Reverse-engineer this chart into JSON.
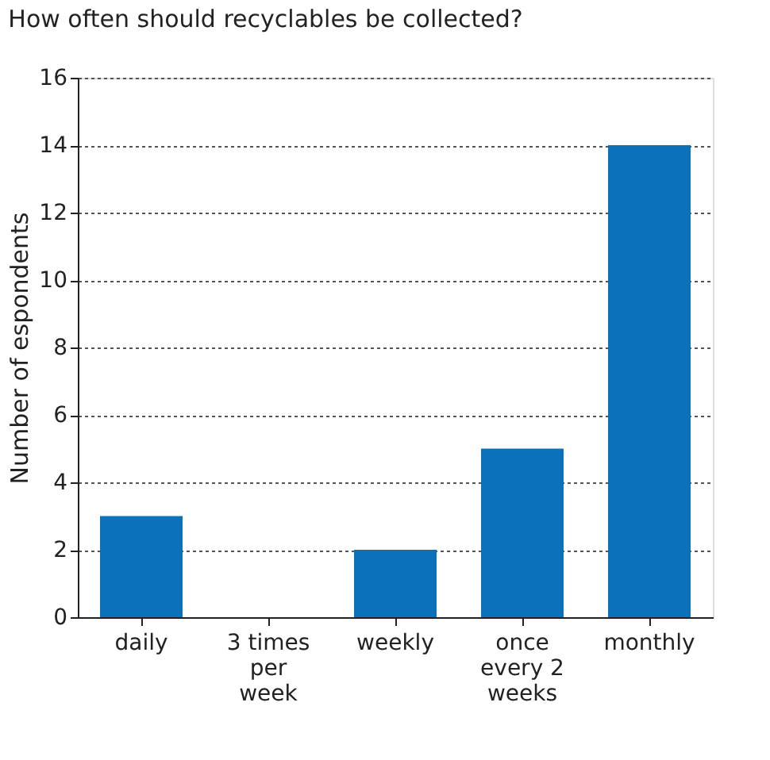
{
  "chart_data": {
    "type": "bar",
    "title": "How often should recyclables be collected?",
    "ylabel": "Number of espondents",
    "categories": [
      "daily",
      "3 times per week",
      "weekly",
      "once every 2 weeks",
      "monthly"
    ],
    "values": [
      3,
      0,
      2,
      5,
      14
    ],
    "color": "#0a72bb",
    "ylim": [
      0,
      16
    ],
    "yticks": [
      0,
      2,
      4,
      6,
      8,
      10,
      12,
      14,
      16
    ],
    "grid": "y"
  }
}
